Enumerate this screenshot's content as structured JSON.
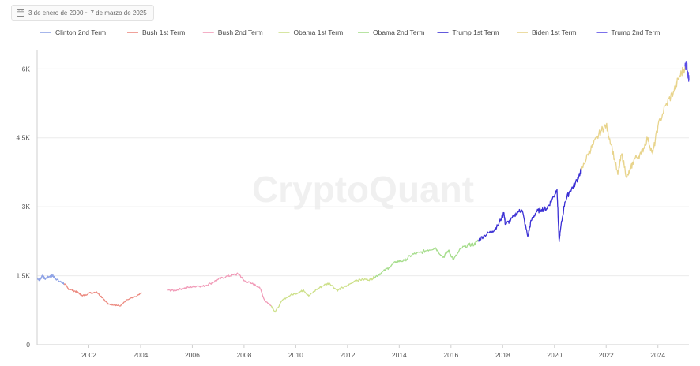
{
  "date_range": {
    "label": "3 de enero de 2000 ~ 7 de marzo de 2025",
    "icon": "calendar-icon"
  },
  "watermark": "CryptoQuant",
  "chart_data": {
    "type": "line",
    "x_unit": "year",
    "xlim": [
      2000.0,
      2025.2
    ],
    "ylim": [
      0,
      6400
    ],
    "x_ticks": [
      2002,
      2004,
      2006,
      2008,
      2010,
      2012,
      2014,
      2016,
      2018,
      2020,
      2022,
      2024
    ],
    "x_tick_labels": [
      "2002",
      "2004",
      "2006",
      "2008",
      "2010",
      "2012",
      "2014",
      "2016",
      "2018",
      "2020",
      "2022",
      "2024"
    ],
    "y_ticks": [
      0,
      1500,
      3000,
      4500,
      6000
    ],
    "y_tick_labels": [
      "0",
      "1.5K",
      "3K",
      "4.5K",
      "6K"
    ],
    "grid": "horizontal",
    "legend_position": "top",
    "series": [
      {
        "name": "Clinton 2nd Term",
        "color": "#8fa3e6",
        "x": [
          2000.0,
          2000.1,
          2000.2,
          2000.3,
          2000.45,
          2000.6,
          2000.7,
          2000.85,
          2001.05
        ],
        "y": [
          1455,
          1400,
          1510,
          1430,
          1480,
          1500,
          1450,
          1380,
          1330
        ]
      },
      {
        "name": "Bush 1st Term",
        "color": "#ec8a80",
        "x": [
          2001.05,
          2001.2,
          2001.4,
          2001.6,
          2001.75,
          2002.0,
          2002.3,
          2002.55,
          2002.75,
          2003.0,
          2003.2,
          2003.5,
          2003.8,
          2004.05
        ],
        "y": [
          1330,
          1220,
          1180,
          1130,
          1060,
          1120,
          1150,
          1010,
          880,
          870,
          840,
          980,
          1040,
          1130
        ]
      },
      {
        "name": "Bush 2nd Term",
        "color": "#f19bb8",
        "x": [
          2005.05,
          2005.3,
          2005.6,
          2005.9,
          2006.2,
          2006.4,
          2006.7,
          2007.0,
          2007.3,
          2007.6,
          2007.8,
          2008.0,
          2008.3,
          2008.6,
          2008.8,
          2009.05
        ],
        "y": [
          1190,
          1180,
          1220,
          1250,
          1280,
          1270,
          1330,
          1420,
          1480,
          1520,
          1540,
          1390,
          1330,
          1250,
          960,
          850
        ]
      },
      {
        "name": "Obama 1st Term",
        "color": "#cde08a",
        "x": [
          2009.05,
          2009.2,
          2009.5,
          2009.8,
          2010.1,
          2010.3,
          2010.5,
          2010.8,
          2011.1,
          2011.3,
          2011.6,
          2011.8,
          2012.0,
          2012.3,
          2012.6,
          2012.9,
          2013.05
        ],
        "y": [
          850,
          710,
          980,
          1080,
          1130,
          1190,
          1060,
          1200,
          1300,
          1340,
          1180,
          1240,
          1280,
          1400,
          1420,
          1420,
          1470
        ]
      },
      {
        "name": "Obama 2nd Term",
        "color": "#a6dd8c",
        "x": [
          2013.05,
          2013.3,
          2013.6,
          2013.9,
          2014.2,
          2014.5,
          2014.8,
          2015.1,
          2015.4,
          2015.7,
          2015.9,
          2016.1,
          2016.4,
          2016.7,
          2016.9,
          2017.05
        ],
        "y": [
          1470,
          1560,
          1680,
          1810,
          1830,
          1960,
          2000,
          2060,
          2110,
          1900,
          2050,
          1850,
          2100,
          2170,
          2180,
          2270
        ]
      },
      {
        "name": "Trump 1st Term",
        "color": "#3a2fd4",
        "x": [
          2017.05,
          2017.3,
          2017.6,
          2017.8,
          2018.05,
          2018.1,
          2018.3,
          2018.6,
          2018.75,
          2018.97,
          2019.1,
          2019.3,
          2019.5,
          2019.7,
          2019.9,
          2020.1,
          2020.18,
          2020.22,
          2020.4,
          2020.6,
          2020.8,
          2021.0,
          2021.05
        ],
        "y": [
          2270,
          2380,
          2470,
          2580,
          2870,
          2620,
          2700,
          2900,
          2920,
          2350,
          2700,
          2890,
          2940,
          2960,
          3150,
          3380,
          2240,
          2450,
          3100,
          3350,
          3500,
          3750,
          3800
        ]
      },
      {
        "name": "Biden 1st Term",
        "color": "#e8d48c",
        "x": [
          2021.05,
          2021.3,
          2021.5,
          2021.8,
          2022.0,
          2022.2,
          2022.45,
          2022.6,
          2022.8,
          2022.95,
          2023.1,
          2023.35,
          2023.6,
          2023.8,
          2024.0,
          2024.3,
          2024.6,
          2024.85,
          2025.05
        ],
        "y": [
          3800,
          4150,
          4350,
          4650,
          4780,
          4350,
          3700,
          4150,
          3630,
          3830,
          4050,
          4150,
          4500,
          4150,
          4750,
          5200,
          5500,
          5850,
          6050
        ]
      },
      {
        "name": "Trump 2nd Term",
        "color": "#5a4de6",
        "x": [
          2025.05,
          2025.1,
          2025.15,
          2025.2
        ],
        "y": [
          6050,
          6100,
          5950,
          5750
        ]
      }
    ]
  }
}
